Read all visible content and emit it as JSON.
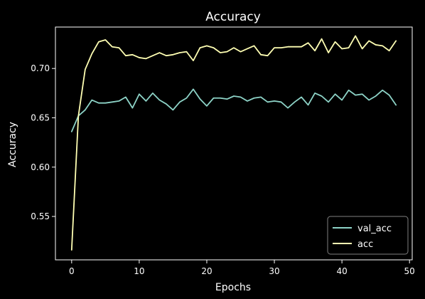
{
  "chart_data": {
    "type": "line",
    "title": "Accuracy",
    "xlabel": "Epochs",
    "ylabel": "Accuracy",
    "xlim": [
      -2.4,
      50.4
    ],
    "ylim": [
      0.506,
      0.742
    ],
    "xticks": [
      0,
      10,
      20,
      30,
      40,
      50
    ],
    "yticks": [
      0.55,
      0.6,
      0.65,
      0.7
    ],
    "xtick_labels": [
      "0",
      "10",
      "20",
      "30",
      "40",
      "50"
    ],
    "ytick_labels": [
      "0.55",
      "0.60",
      "0.65",
      "0.70"
    ],
    "grid": false,
    "legend_position": "bottom-right",
    "x": [
      0,
      1,
      2,
      3,
      4,
      5,
      6,
      7,
      8,
      9,
      10,
      11,
      12,
      13,
      14,
      15,
      16,
      17,
      18,
      19,
      20,
      21,
      22,
      23,
      24,
      25,
      26,
      27,
      28,
      29,
      30,
      31,
      32,
      33,
      34,
      35,
      36,
      37,
      38,
      39,
      40,
      41,
      42,
      43,
      44,
      45,
      46,
      47,
      48
    ],
    "series": [
      {
        "name": "val_acc",
        "color": "#8dd3c7",
        "values": [
          0.636,
          0.652,
          0.658,
          0.668,
          0.665,
          0.665,
          0.666,
          0.667,
          0.671,
          0.66,
          0.674,
          0.667,
          0.675,
          0.668,
          0.664,
          0.658,
          0.666,
          0.67,
          0.679,
          0.669,
          0.662,
          0.67,
          0.67,
          0.669,
          0.672,
          0.671,
          0.667,
          0.67,
          0.671,
          0.666,
          0.667,
          0.666,
          0.66,
          0.666,
          0.671,
          0.663,
          0.675,
          0.672,
          0.666,
          0.674,
          0.668,
          0.678,
          0.673,
          0.674,
          0.668,
          0.672,
          0.678,
          0.673,
          0.663
        ]
      },
      {
        "name": "acc",
        "color": "#ffffb3",
        "values": [
          0.516,
          0.652,
          0.699,
          0.715,
          0.727,
          0.729,
          0.722,
          0.721,
          0.713,
          0.714,
          0.711,
          0.71,
          0.713,
          0.716,
          0.713,
          0.714,
          0.716,
          0.717,
          0.708,
          0.721,
          0.723,
          0.721,
          0.716,
          0.717,
          0.721,
          0.717,
          0.72,
          0.723,
          0.714,
          0.713,
          0.721,
          0.721,
          0.722,
          0.722,
          0.722,
          0.726,
          0.718,
          0.73,
          0.716,
          0.727,
          0.72,
          0.721,
          0.733,
          0.72,
          0.728,
          0.724,
          0.723,
          0.718,
          0.728
        ]
      }
    ]
  }
}
